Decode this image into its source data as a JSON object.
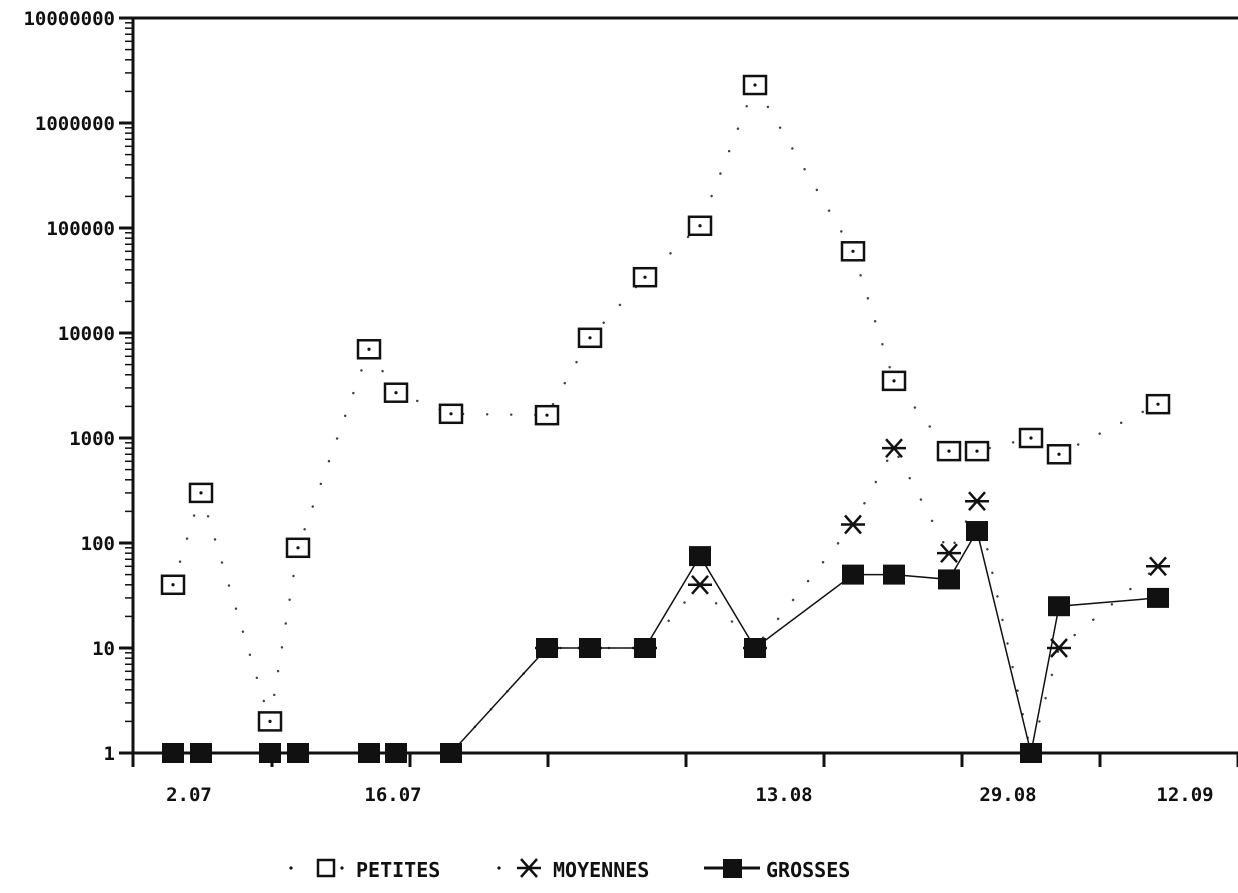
{
  "chart_data": {
    "type": "line",
    "y_scale": "log",
    "ylim": [
      1,
      10000000
    ],
    "y_tick_labels": [
      "1",
      "10",
      "100",
      "1000",
      "10000",
      "100000",
      "1000000",
      "10000000"
    ],
    "x_tick_labels": [
      "2.07",
      "16.07",
      "13.08",
      "29.08",
      "12.09"
    ],
    "grid": false,
    "legend_position": "bottom",
    "title": "",
    "xlabel": "",
    "ylabel": "",
    "series": [
      {
        "name": "PETITES",
        "marker": "open-square",
        "line": "dotted",
        "color": "#111111",
        "values": [
          40,
          300,
          2,
          90,
          7000,
          2700,
          1700,
          1650,
          9000,
          34000,
          105000,
          2300000,
          60000,
          3500,
          750,
          750,
          1000,
          700,
          2100
        ]
      },
      {
        "name": "MOYENNES",
        "marker": "asterisk",
        "line": "dotted",
        "color": "#111111",
        "values": [
          1,
          1,
          1,
          1,
          1,
          1,
          1,
          10,
          10,
          10,
          40,
          10,
          150,
          800,
          80,
          250,
          1,
          10,
          60
        ]
      },
      {
        "name": "GROSSES",
        "marker": "filled-square",
        "line": "solid",
        "color": "#111111",
        "values": [
          1,
          1,
          1,
          1,
          1,
          1,
          1,
          10,
          10,
          10,
          75,
          10,
          50,
          50,
          45,
          130,
          1,
          25,
          30
        ]
      }
    ]
  },
  "legend": {
    "petites_label": "PETITES",
    "moyennes_label": "MOYENNES",
    "grosses_label": "GROSSES"
  }
}
